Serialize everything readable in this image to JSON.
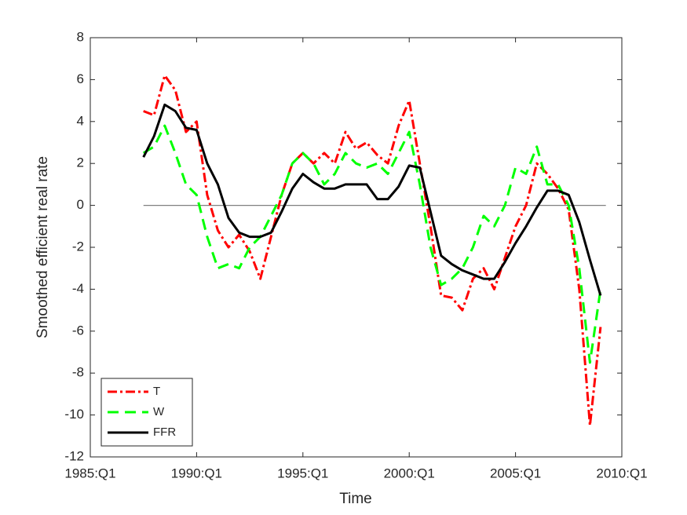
{
  "chart_data": {
    "type": "line",
    "x_label": "Time",
    "y_label": "Smoothed efficient real rate",
    "x": [
      1987.5,
      1988,
      1988.5,
      1989,
      1989.5,
      1990,
      1990.5,
      1991,
      1991.5,
      1992,
      1992.5,
      1993,
      1993.5,
      1994,
      1994.5,
      1995,
      1995.5,
      1996,
      1996.5,
      1997,
      1997.5,
      1998,
      1998.5,
      1999,
      1999.5,
      2000,
      2000.5,
      2001,
      2001.5,
      2002,
      2002.5,
      2003,
      2003.5,
      2004,
      2004.5,
      2005,
      2005.5,
      2006,
      2006.5,
      2007,
      2007.5,
      2008,
      2008.5,
      2009
    ],
    "series": [
      {
        "name": "T",
        "color": "#ff0000",
        "dash": "12,4,3,4",
        "values": [
          4.5,
          4.3,
          6.2,
          5.5,
          3.5,
          4.0,
          0.5,
          -1.2,
          -2.0,
          -1.4,
          -2.2,
          -3.5,
          -1.5,
          0.5,
          2.0,
          2.5,
          2.0,
          2.5,
          2.0,
          3.5,
          2.7,
          3.0,
          2.4,
          2.0,
          3.8,
          5.0,
          2.0,
          -1.0,
          -4.3,
          -4.4,
          -5.0,
          -3.5,
          -3.0,
          -4.0,
          -2.5,
          -1.0,
          0.0,
          2.0,
          1.5,
          0.8,
          -0.2,
          -4.0,
          -10.5,
          -5.8
        ]
      },
      {
        "name": "W",
        "color": "#00ff00",
        "dash": "14,8",
        "values": [
          2.5,
          2.8,
          3.8,
          2.5,
          1.0,
          0.5,
          -1.5,
          -3.0,
          -2.8,
          -3.0,
          -2.0,
          -1.5,
          -0.5,
          0.5,
          2.0,
          2.5,
          2.0,
          1.0,
          1.5,
          2.5,
          2.0,
          1.8,
          2.0,
          1.5,
          2.5,
          3.5,
          1.0,
          -2.0,
          -3.8,
          -3.5,
          -3.0,
          -2.0,
          -0.5,
          -1.0,
          0.0,
          1.8,
          1.5,
          2.8,
          1.0,
          1.0,
          0.0,
          -3.0,
          -7.5,
          -4.0
        ]
      },
      {
        "name": "FFR",
        "color": "#000000",
        "dash": "none",
        "values": [
          2.3,
          3.3,
          4.8,
          4.5,
          3.7,
          3.6,
          2.0,
          1.0,
          -0.6,
          -1.3,
          -1.5,
          -1.5,
          -1.3,
          -0.3,
          0.8,
          1.5,
          1.1,
          0.8,
          0.8,
          1.0,
          1.0,
          1.0,
          0.3,
          0.3,
          0.9,
          1.9,
          1.8,
          -0.3,
          -2.4,
          -2.8,
          -3.1,
          -3.3,
          -3.5,
          -3.5,
          -2.7,
          -1.8,
          -1.0,
          -0.1,
          0.7,
          0.7,
          0.5,
          -0.8,
          -2.6,
          -4.3
        ]
      }
    ],
    "hline": 0,
    "xlim": [
      1985,
      2010
    ],
    "xticks": [
      {
        "value": 1985,
        "label": "1985:Q1"
      },
      {
        "value": 1990,
        "label": "1990:Q1"
      },
      {
        "value": 1995,
        "label": "1995:Q1"
      },
      {
        "value": 2000,
        "label": "2000:Q1"
      },
      {
        "value": 2005,
        "label": "2005:Q1"
      },
      {
        "value": 2010,
        "label": "2010:Q1"
      }
    ],
    "ylim": [
      -12,
      8
    ],
    "yticks": [
      -12,
      -10,
      -8,
      -6,
      -4,
      -2,
      0,
      2,
      4,
      6,
      8
    ],
    "legend": "lower left"
  }
}
